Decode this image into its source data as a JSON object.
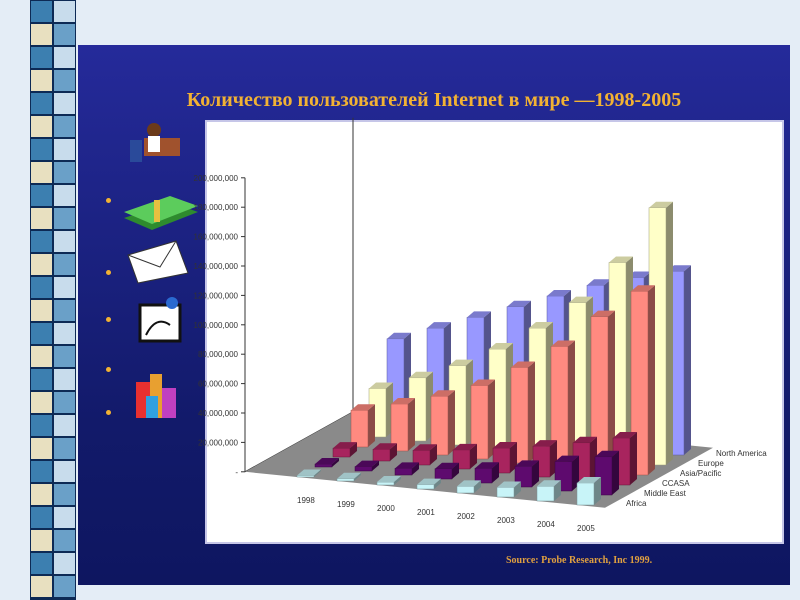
{
  "slide": {
    "title": "Количество пользователей Internet в мире —1998-2005",
    "source": "Source: Probe Research, Inc 1999."
  },
  "icons": [
    "businessman-at-desk-icon",
    "money-stack-icon",
    "envelopes-icon",
    "stethoscope-monitor-icon",
    "city-buildings-icon"
  ],
  "colors": {
    "panel": "#1a2080",
    "title": "#f2b233",
    "floor": "#8a8a8a"
  },
  "chart_data": {
    "type": "bar",
    "subtype": "3d-grouped",
    "categories": [
      "1998",
      "1999",
      "2000",
      "2001",
      "2002",
      "2003",
      "2004",
      "2005"
    ],
    "yticks": [
      "-",
      "20,000,000",
      "40,000,000",
      "60,000,000",
      "80,000,000",
      "100,000,000",
      "120,000,000",
      "140,000,000",
      "160,000,000",
      "180,000,000",
      "200,000,000"
    ],
    "ylim": [
      0,
      200000000
    ],
    "series": [
      {
        "name": "Africa",
        "color": "#c8f4f8",
        "values": [
          1000000,
          1500000,
          2000000,
          3000000,
          4500000,
          6500000,
          10000000,
          15000000
        ]
      },
      {
        "name": "Middle East",
        "color": "#5e0a6e",
        "values": [
          2000000,
          3000000,
          4500000,
          7000000,
          10000000,
          14000000,
          20000000,
          26000000
        ]
      },
      {
        "name": "CCASA",
        "color": "#a8245e",
        "values": [
          6000000,
          8000000,
          10000000,
          13000000,
          17000000,
          21000000,
          26000000,
          32000000
        ]
      },
      {
        "name": "Asia/Pacific",
        "color": "#ff8a80",
        "values": [
          25000000,
          32000000,
          40000000,
          50000000,
          65000000,
          82000000,
          105000000,
          125000000
        ]
      },
      {
        "name": "Europe",
        "color": "#ffffc8",
        "values": [
          33000000,
          43000000,
          54000000,
          68000000,
          85000000,
          105000000,
          135000000,
          175000000
        ]
      },
      {
        "name": "North America",
        "color": "#9898ff",
        "values": [
          60000000,
          70000000,
          80000000,
          90000000,
          100000000,
          110000000,
          118000000,
          125000000
        ]
      }
    ]
  }
}
